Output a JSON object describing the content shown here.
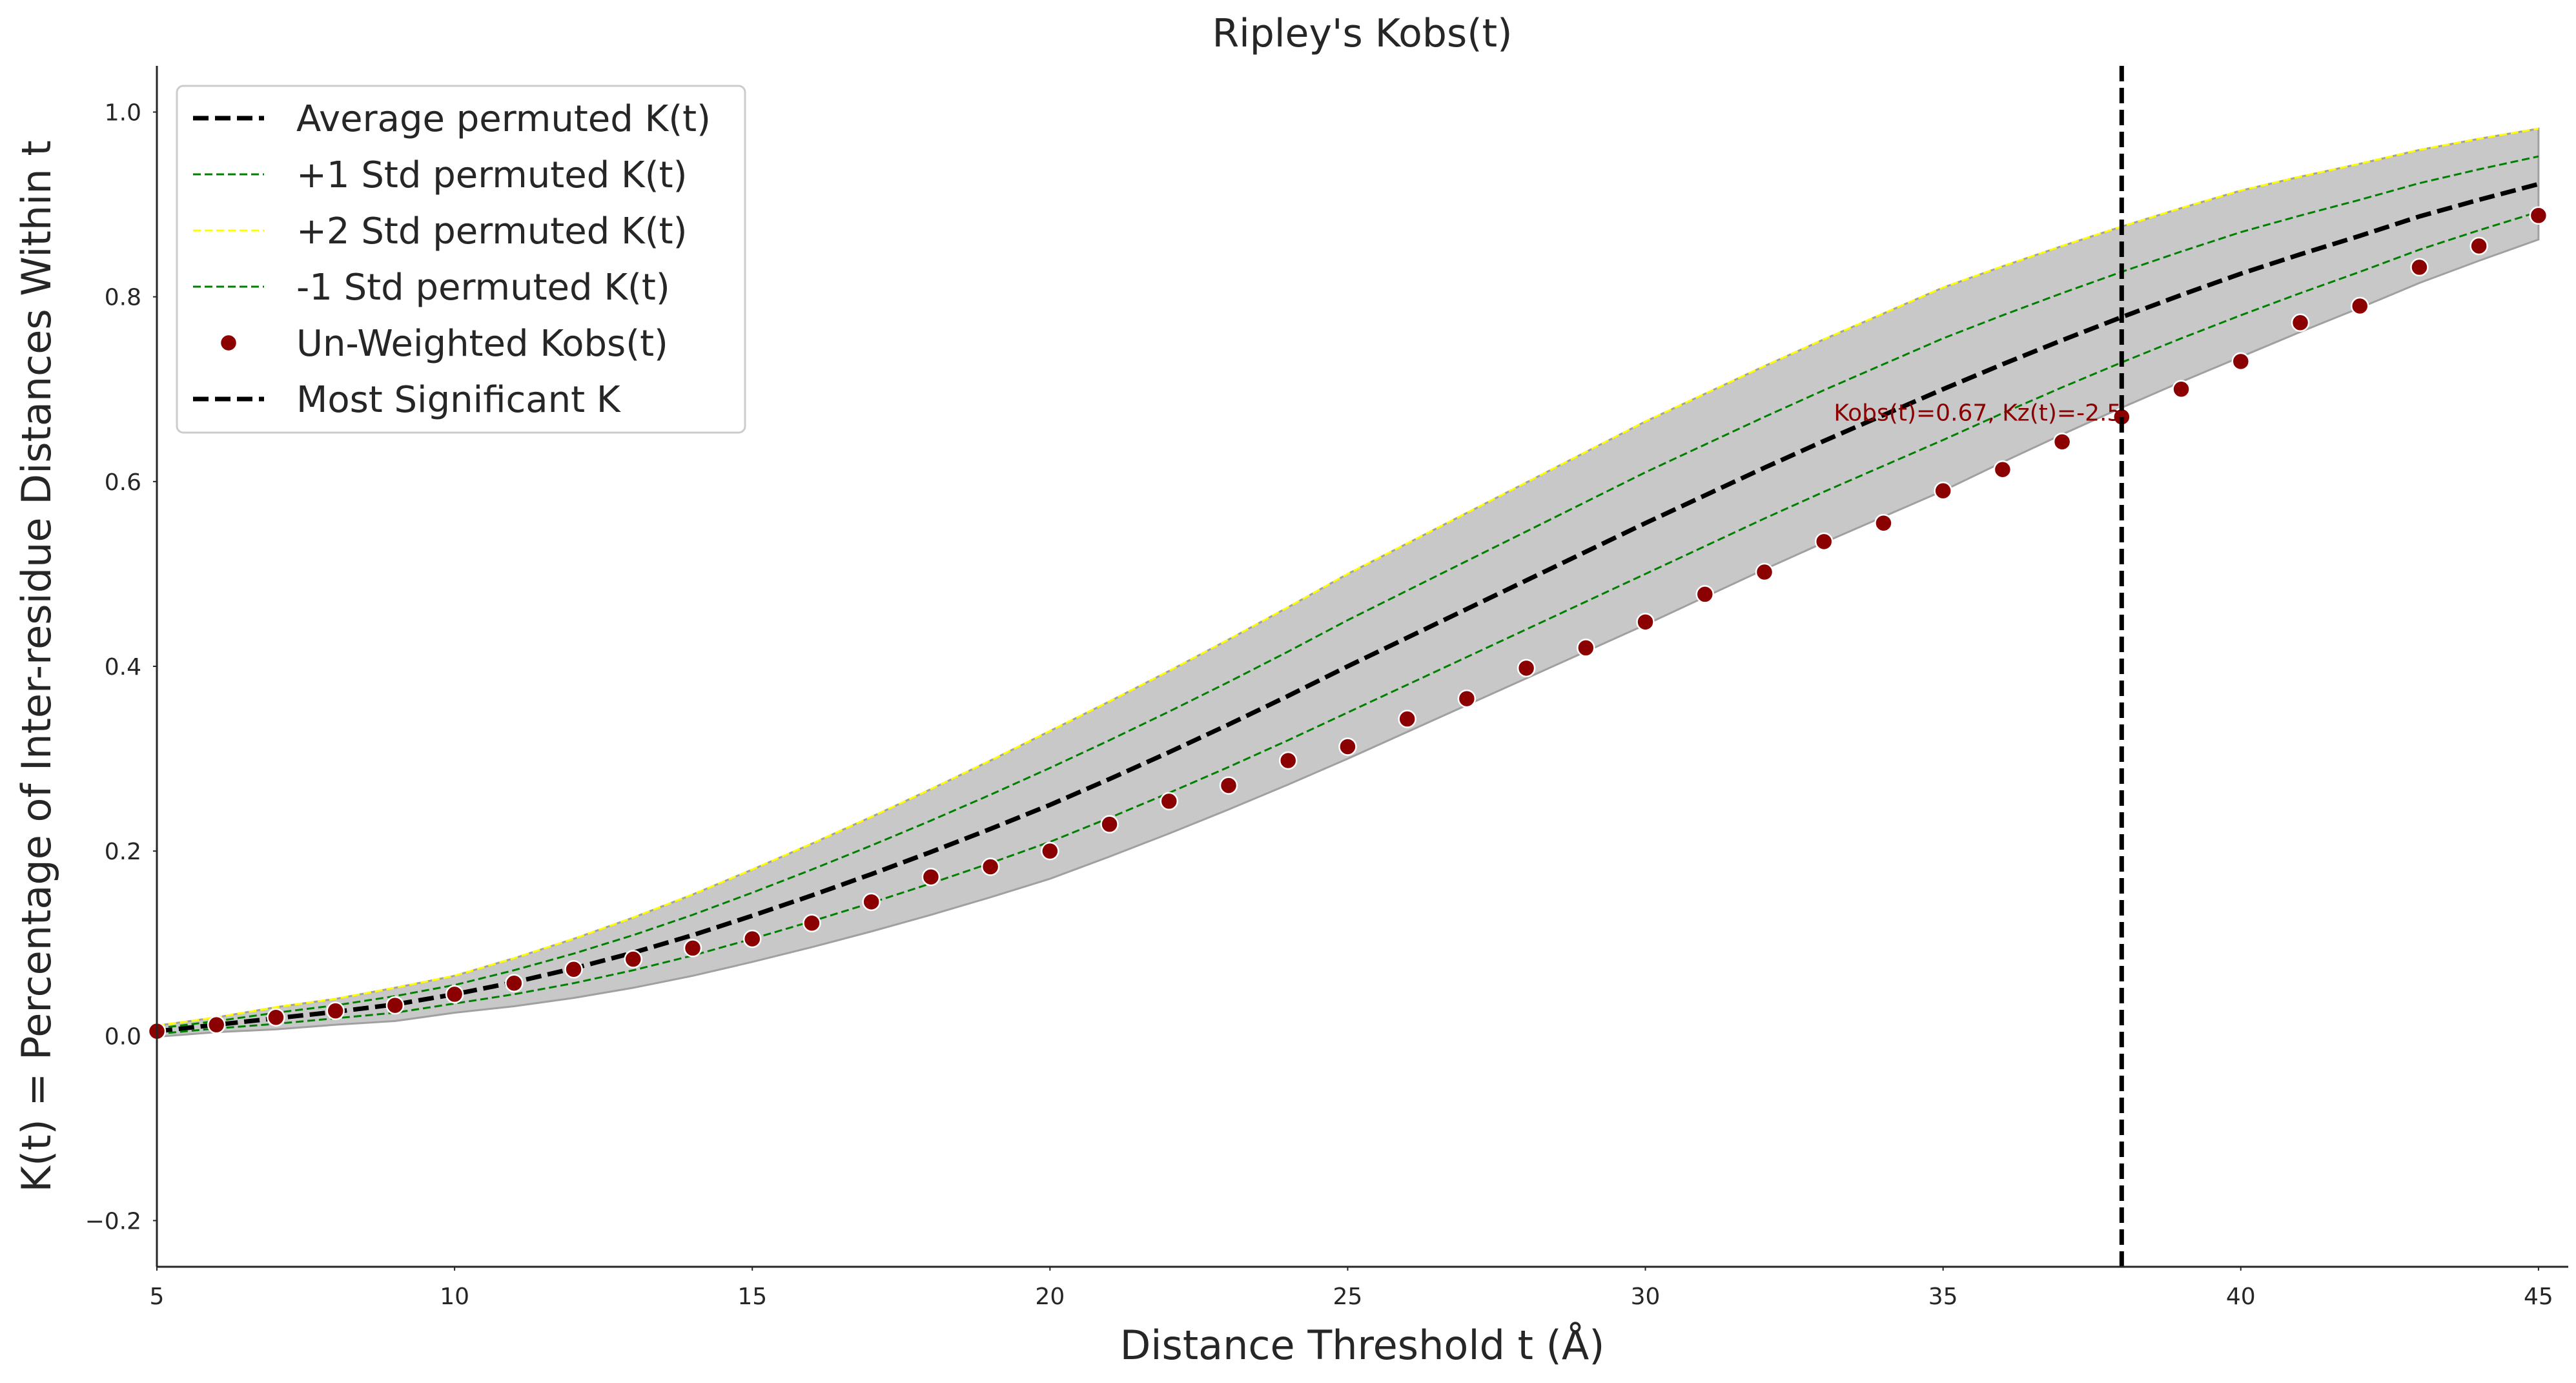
{
  "chart_data": {
    "type": "line",
    "title": "Ripley's Kobs(t)",
    "x_label": "Distance Threshold t (Å)",
    "y_label": "K(t) = Percentage of Inter-residue Distances Within t",
    "x": [
      5,
      6,
      7,
      8,
      9,
      10,
      11,
      12,
      13,
      14,
      15,
      16,
      17,
      18,
      19,
      20,
      21,
      22,
      23,
      24,
      25,
      26,
      27,
      28,
      29,
      30,
      31,
      32,
      33,
      34,
      35,
      36,
      37,
      38,
      39,
      40,
      41,
      42,
      43,
      44,
      45
    ],
    "series": [
      {
        "name": "Average permuted K(t)",
        "kind": "line",
        "color": "#000000",
        "linestyle": "dashed",
        "width": 7,
        "values": [
          0.005,
          0.012,
          0.019,
          0.026,
          0.034,
          0.045,
          0.058,
          0.073,
          0.09,
          0.109,
          0.13,
          0.152,
          0.175,
          0.199,
          0.224,
          0.25,
          0.278,
          0.307,
          0.337,
          0.368,
          0.4,
          0.431,
          0.462,
          0.493,
          0.524,
          0.555,
          0.585,
          0.615,
          0.644,
          0.672,
          0.7,
          0.727,
          0.753,
          0.778,
          0.802,
          0.825,
          0.846,
          0.866,
          0.887,
          0.905,
          0.922
        ]
      },
      {
        "name": "+1 Std permuted K(t)",
        "kind": "line",
        "color": "#008000",
        "linestyle": "dashed",
        "width": 3,
        "values": [
          0.008,
          0.016,
          0.025,
          0.033,
          0.043,
          0.055,
          0.071,
          0.089,
          0.109,
          0.131,
          0.155,
          0.18,
          0.206,
          0.233,
          0.261,
          0.29,
          0.32,
          0.351,
          0.383,
          0.416,
          0.45,
          0.482,
          0.514,
          0.546,
          0.578,
          0.61,
          0.64,
          0.67,
          0.699,
          0.727,
          0.755,
          0.78,
          0.804,
          0.827,
          0.849,
          0.87,
          0.888,
          0.905,
          0.923,
          0.938,
          0.952
        ]
      },
      {
        "name": "+2 Std permuted K(t)",
        "kind": "line",
        "color": "#ffff00",
        "linestyle": "dashed",
        "width": 3,
        "values": [
          0.011,
          0.02,
          0.031,
          0.04,
          0.052,
          0.065,
          0.084,
          0.105,
          0.128,
          0.153,
          0.18,
          0.208,
          0.237,
          0.267,
          0.298,
          0.33,
          0.362,
          0.395,
          0.429,
          0.464,
          0.5,
          0.533,
          0.566,
          0.599,
          0.632,
          0.665,
          0.695,
          0.725,
          0.754,
          0.782,
          0.81,
          0.833,
          0.855,
          0.876,
          0.896,
          0.915,
          0.93,
          0.944,
          0.959,
          0.971,
          0.982
        ]
      },
      {
        "name": "-1 Std permuted K(t)",
        "kind": "line",
        "color": "#008000",
        "linestyle": "dashed",
        "width": 3,
        "values": [
          0.002,
          0.008,
          0.013,
          0.019,
          0.025,
          0.035,
          0.045,
          0.057,
          0.071,
          0.087,
          0.105,
          0.124,
          0.144,
          0.165,
          0.187,
          0.21,
          0.236,
          0.263,
          0.291,
          0.32,
          0.35,
          0.38,
          0.41,
          0.44,
          0.47,
          0.5,
          0.53,
          0.56,
          0.589,
          0.617,
          0.645,
          0.674,
          0.702,
          0.729,
          0.755,
          0.78,
          0.804,
          0.827,
          0.851,
          0.872,
          0.892
        ]
      },
      {
        "name": "Un-Weighted Kobs(t)",
        "kind": "scatter",
        "color": "#8b0000",
        "values": [
          0.005,
          0.012,
          0.02,
          0.027,
          0.033,
          0.045,
          0.057,
          0.072,
          0.083,
          0.095,
          0.105,
          0.122,
          0.145,
          0.172,
          0.183,
          0.2,
          0.229,
          0.254,
          0.271,
          0.298,
          0.313,
          0.343,
          0.365,
          0.398,
          0.42,
          0.448,
          0.478,
          0.502,
          0.535,
          0.555,
          0.59,
          0.613,
          0.643,
          0.67,
          0.7,
          0.73,
          0.772,
          0.79,
          0.832,
          0.855,
          0.888
        ]
      }
    ],
    "band": {
      "color": "#c8c8c8",
      "lower": [
        -0.001,
        0.004,
        0.007,
        0.012,
        0.016,
        0.025,
        0.032,
        0.041,
        0.052,
        0.065,
        0.08,
        0.096,
        0.113,
        0.131,
        0.15,
        0.17,
        0.194,
        0.219,
        0.245,
        0.272,
        0.3,
        0.329,
        0.358,
        0.387,
        0.416,
        0.445,
        0.475,
        0.505,
        0.534,
        0.562,
        0.59,
        0.621,
        0.651,
        0.68,
        0.708,
        0.735,
        0.762,
        0.788,
        0.815,
        0.839,
        0.862
      ]
    },
    "vline": {
      "name": "Most Significant K",
      "x": 38,
      "color": "#000000",
      "linestyle": "dashed"
    },
    "annotation": {
      "text": "Kobs(t)=0.67, Kz(t)=-2.5",
      "x": 38,
      "y": 0.67,
      "color": "#8b0000"
    },
    "xlim": [
      5,
      45.5
    ],
    "ylim": [
      -0.25,
      1.05
    ],
    "xticks": [
      5,
      10,
      15,
      20,
      25,
      30,
      35,
      40,
      45
    ],
    "yticks": [
      {
        "value": -0.2,
        "label": "−0.2"
      },
      {
        "value": 0,
        "label": "0.0"
      },
      0.2,
      0.4,
      0.6,
      0.8,
      {
        "value": 1,
        "label": "1.0"
      }
    ],
    "grid": false,
    "legend": "upper left"
  }
}
